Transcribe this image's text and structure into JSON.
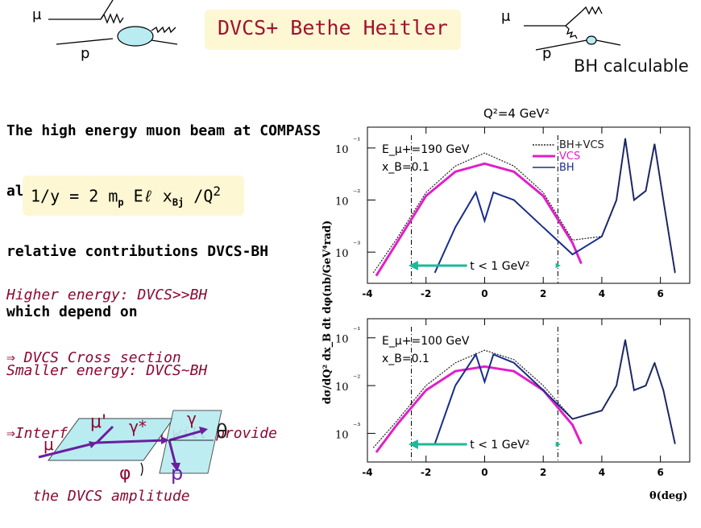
{
  "title": "DVCS+ Bethe Heitler",
  "diagram_left": {
    "muon": "μ",
    "proton": "p"
  },
  "diagram_right": {
    "muon": "μ",
    "proton": "p",
    "caption": "BH calculable"
  },
  "intro_lines": [
    "The high energy muon beam at COMPASS",
    "allows to play with the",
    "relative contributions DVCS-BH",
    "which depend on"
  ],
  "formula": {
    "lhs": "1/y = 2 m",
    "sub_p": "p",
    "mid": " E",
    "ell": "ℓ",
    "x": " x",
    "sub_bj": "Bj",
    "tail": " /Q",
    "sup": "2"
  },
  "higher_energy": [
    "Higher energy: DVCS>>BH",
    "⇒ DVCS Cross section"
  ],
  "smaller_energy": [
    "Smaller energy: DVCS~BH",
    "⇒Interference term will provide",
    "   the DVCS amplitude"
  ],
  "kinematics": {
    "mu": "μ",
    "mu_prime": "μ'",
    "gamma_star": "γ*",
    "gamma": "γ",
    "theta": "θ",
    "phi": "φ",
    "proton": "p"
  },
  "chart_data": [
    {
      "type": "line",
      "panel": "top",
      "header": "Q²=4 GeV²",
      "ylabel": "dσ/dQ² dx_B dt dφ(nb/GeV⁴rad)",
      "energy_label": "E_μ+=190 GeV",
      "xb_label": "x_B=0.1",
      "xlim": [
        -4,
        7
      ],
      "x_ticks": [
        "-4",
        "-2",
        "0",
        "2",
        "4",
        "6"
      ],
      "y_ticks": [
        "10⁻¹",
        "10⁻²",
        "10⁻³"
      ],
      "log_y": true,
      "legend": [
        "BH+VCS",
        "VCS",
        "BH"
      ],
      "legend_colors": [
        "#222222",
        "#e020c8",
        "#1a2d8a"
      ],
      "t_cut_label": "t < 1 GeV²",
      "t_cut_x": [
        -2.5,
        2.5
      ],
      "series": [
        {
          "name": "VCS",
          "x": [
            -3.7,
            -3,
            -2,
            -1,
            0,
            1,
            2,
            3,
            3.3
          ],
          "y": [
            0.00035,
            0.0015,
            0.012,
            0.035,
            0.05,
            0.035,
            0.012,
            0.0015,
            0.0006
          ]
        },
        {
          "name": "BH",
          "x": [
            -1.7,
            -1,
            -0.3,
            0,
            0.3,
            1,
            2,
            3,
            4,
            4.5,
            4.8,
            5.1,
            5.5,
            5.8,
            6.1,
            6.5
          ],
          "y": [
            0.0004,
            0.003,
            0.014,
            0.004,
            0.014,
            0.01,
            0.003,
            0.0009,
            0.002,
            0.01,
            0.15,
            0.01,
            0.015,
            0.12,
            0.01,
            0.0004
          ]
        },
        {
          "name": "BH+VCS",
          "x": [
            -3.8,
            -3,
            -2,
            -1,
            0,
            1,
            2,
            3,
            4,
            4.5,
            4.8,
            5.1,
            5.5,
            5.8,
            6.1,
            6.5
          ],
          "y": [
            0.0004,
            0.0018,
            0.014,
            0.045,
            0.08,
            0.045,
            0.014,
            0.0017,
            0.002,
            0.01,
            0.15,
            0.01,
            0.015,
            0.12,
            0.01,
            0.0004
          ]
        }
      ]
    },
    {
      "type": "line",
      "panel": "bottom",
      "energy_label": "E_μ+=100 GeV",
      "xb_label": "x_B=0.1",
      "xlabel": "θ(deg)",
      "xlim": [
        -4,
        7
      ],
      "x_ticks": [
        "-4",
        "-2",
        "0",
        "2",
        "4",
        "6"
      ],
      "y_ticks": [
        "10⁻¹",
        "10⁻²",
        "10⁻³"
      ],
      "log_y": true,
      "t_cut_label": "t < 1 GeV²",
      "t_cut_x": [
        -2.5,
        2.5
      ],
      "series": [
        {
          "name": "VCS",
          "x": [
            -3.7,
            -3,
            -2,
            -1,
            0,
            1,
            2,
            3,
            3.3
          ],
          "y": [
            0.0004,
            0.0015,
            0.008,
            0.02,
            0.025,
            0.02,
            0.008,
            0.0015,
            0.0006
          ]
        },
        {
          "name": "BH",
          "x": [
            -1.7,
            -1,
            -0.3,
            0,
            0.3,
            1,
            2,
            3,
            4,
            4.5,
            4.8,
            5.1,
            5.5,
            5.8,
            6.1,
            6.5
          ],
          "y": [
            0.0006,
            0.01,
            0.045,
            0.012,
            0.045,
            0.03,
            0.008,
            0.002,
            0.003,
            0.01,
            0.09,
            0.008,
            0.01,
            0.03,
            0.008,
            0.0006
          ]
        },
        {
          "name": "BH+VCS",
          "x": [
            -3.8,
            -3,
            -2,
            -1,
            0,
            1,
            2,
            3,
            4,
            4.5,
            4.8,
            5.1,
            5.5,
            5.8,
            6.1,
            6.5
          ],
          "y": [
            0.0005,
            0.0018,
            0.01,
            0.03,
            0.055,
            0.035,
            0.01,
            0.002,
            0.003,
            0.01,
            0.09,
            0.008,
            0.01,
            0.03,
            0.008,
            0.0006
          ]
        }
      ]
    }
  ]
}
